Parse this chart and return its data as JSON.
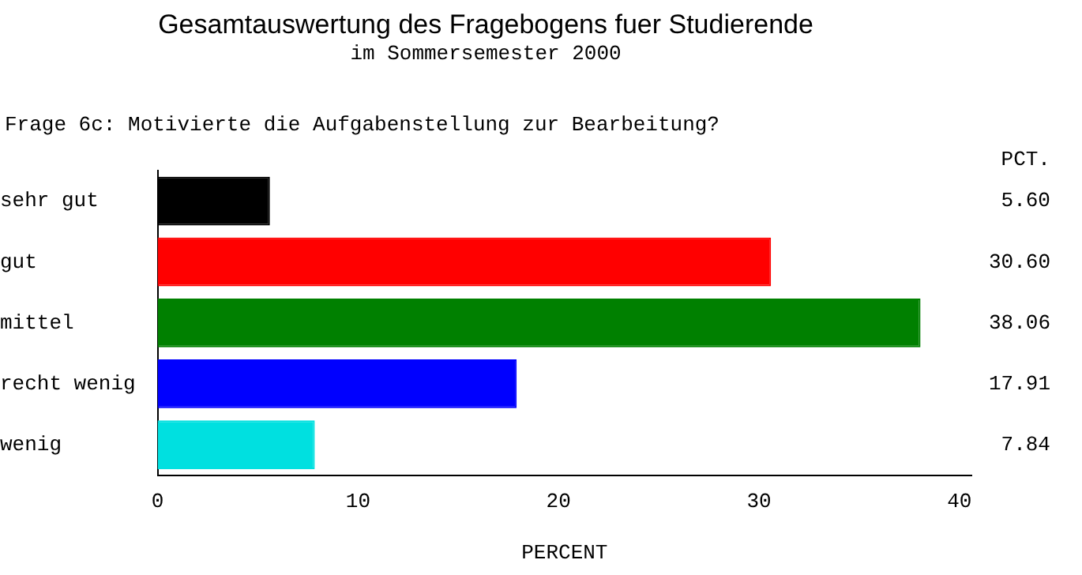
{
  "chart_data": {
    "type": "bar",
    "orientation": "horizontal",
    "title": "Gesamtauswertung des Fragebogens fuer Studierende",
    "subtitle": "im Sommersemester 2000",
    "xlabel": "PERCENT",
    "annotations": [
      "Frage 6c: Motivierte die Aufgabenstellung zur Bearbeitung?",
      "PCT."
    ],
    "categories": [
      "sehr gut",
      "gut",
      "mittel",
      "recht wenig",
      "wenig"
    ],
    "values": [
      5.6,
      30.6,
      38.06,
      17.91,
      7.84
    ],
    "colors": [
      "#000000",
      "#ff0000",
      "#008000",
      "#0000ff",
      "#00e0e0"
    ],
    "value_labels": [
      "5.60",
      "30.60",
      "38.06",
      "17.91",
      "7.84"
    ],
    "xlim": [
      0,
      40.6
    ],
    "xticks": [
      0,
      10,
      20,
      30,
      40
    ],
    "grid": false,
    "legend": false
  }
}
